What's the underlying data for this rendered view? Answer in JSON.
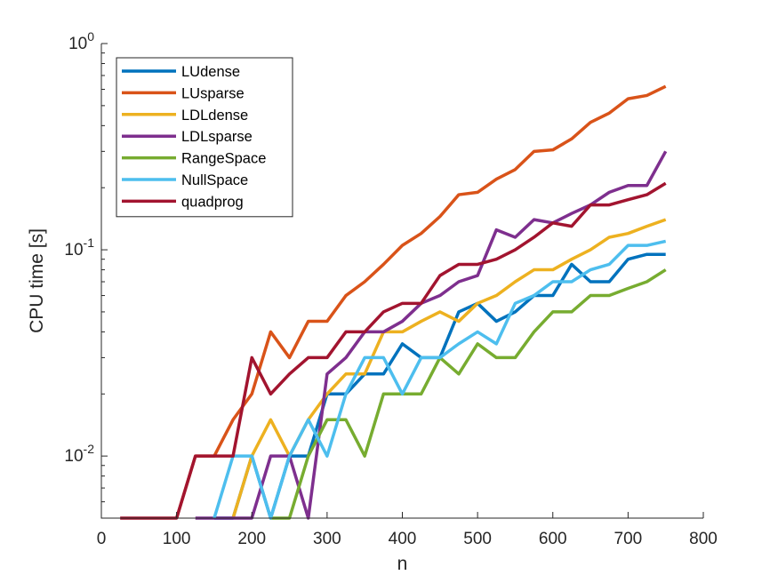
{
  "chart_data": {
    "type": "line",
    "xlabel": "n",
    "ylabel": "CPU time [s]",
    "xlim": [
      0,
      800
    ],
    "ylim": [
      0.005,
      1
    ],
    "yscale": "log",
    "xticks": [
      0,
      100,
      200,
      300,
      400,
      500,
      600,
      700,
      800
    ],
    "yticks": [
      {
        "value": 0.01,
        "base": "10",
        "exp": "-2"
      },
      {
        "value": 0.1,
        "base": "10",
        "exp": "-1"
      },
      {
        "value": 1,
        "base": "10",
        "exp": "0"
      }
    ],
    "grid": false,
    "legend_position": "top-left",
    "series": [
      {
        "name": "LUdense",
        "color": "#0072BD",
        "points": [
          [
            150,
            0.005
          ],
          [
            175,
            0.005
          ],
          [
            200,
            0.01
          ],
          [
            225,
            0.005
          ],
          [
            250,
            0.01
          ],
          [
            275,
            0.01
          ],
          [
            300,
            0.02
          ],
          [
            325,
            0.02
          ],
          [
            350,
            0.025
          ],
          [
            375,
            0.025
          ],
          [
            400,
            0.035
          ],
          [
            425,
            0.03
          ],
          [
            450,
            0.03
          ],
          [
            475,
            0.05
          ],
          [
            500,
            0.055
          ],
          [
            525,
            0.045
          ],
          [
            550,
            0.05
          ],
          [
            575,
            0.06
          ],
          [
            600,
            0.06
          ],
          [
            625,
            0.085
          ],
          [
            650,
            0.07
          ],
          [
            675,
            0.07
          ],
          [
            700,
            0.09
          ],
          [
            725,
            0.095
          ],
          [
            750,
            0.095
          ]
        ]
      },
      {
        "name": "LUsparse",
        "color": "#D95319",
        "points": [
          [
            100,
            0.005
          ],
          [
            125,
            0.01
          ],
          [
            150,
            0.01
          ],
          [
            175,
            0.015
          ],
          [
            200,
            0.02
          ],
          [
            225,
            0.04
          ],
          [
            250,
            0.03
          ],
          [
            275,
            0.045
          ],
          [
            300,
            0.045
          ],
          [
            325,
            0.06
          ],
          [
            350,
            0.07
          ],
          [
            375,
            0.085
          ],
          [
            400,
            0.105
          ],
          [
            425,
            0.12
          ],
          [
            450,
            0.145
          ],
          [
            475,
            0.185
          ],
          [
            500,
            0.19
          ],
          [
            525,
            0.22
          ],
          [
            550,
            0.245
          ],
          [
            575,
            0.3
          ],
          [
            600,
            0.305
          ],
          [
            625,
            0.345
          ],
          [
            650,
            0.415
          ],
          [
            675,
            0.46
          ],
          [
            700,
            0.54
          ],
          [
            725,
            0.56
          ],
          [
            750,
            0.62
          ]
        ]
      },
      {
        "name": "LDLdense",
        "color": "#EDB120",
        "points": [
          [
            175,
            0.005
          ],
          [
            200,
            0.01
          ],
          [
            225,
            0.015
          ],
          [
            250,
            0.01
          ],
          [
            275,
            0.015
          ],
          [
            300,
            0.02
          ],
          [
            325,
            0.025
          ],
          [
            350,
            0.025
          ],
          [
            375,
            0.04
          ],
          [
            400,
            0.04
          ],
          [
            425,
            0.045
          ],
          [
            450,
            0.05
          ],
          [
            475,
            0.045
          ],
          [
            500,
            0.055
          ],
          [
            525,
            0.06
          ],
          [
            550,
            0.07
          ],
          [
            575,
            0.08
          ],
          [
            600,
            0.08
          ],
          [
            625,
            0.09
          ],
          [
            650,
            0.1
          ],
          [
            675,
            0.115
          ],
          [
            700,
            0.12
          ],
          [
            725,
            0.13
          ],
          [
            750,
            0.14
          ]
        ]
      },
      {
        "name": "LDLsparse",
        "color": "#7E2F8E",
        "points": [
          [
            125,
            0.005
          ],
          [
            150,
            0.005
          ],
          [
            175,
            0.005
          ],
          [
            200,
            0.005
          ],
          [
            225,
            0.01
          ],
          [
            250,
            0.01
          ],
          [
            275,
            0.005
          ],
          [
            300,
            0.025
          ],
          [
            325,
            0.03
          ],
          [
            350,
            0.04
          ],
          [
            375,
            0.04
          ],
          [
            400,
            0.045
          ],
          [
            425,
            0.055
          ],
          [
            450,
            0.06
          ],
          [
            475,
            0.07
          ],
          [
            500,
            0.075
          ],
          [
            525,
            0.125
          ],
          [
            550,
            0.115
          ],
          [
            575,
            0.14
          ],
          [
            600,
            0.135
          ],
          [
            625,
            0.15
          ],
          [
            650,
            0.165
          ],
          [
            675,
            0.19
          ],
          [
            700,
            0.205
          ],
          [
            725,
            0.205
          ],
          [
            750,
            0.3
          ]
        ]
      },
      {
        "name": "RangeSpace",
        "color": "#77AC30",
        "points": [
          [
            225,
            0.005
          ],
          [
            250,
            0.005
          ],
          [
            275,
            0.01
          ],
          [
            300,
            0.015
          ],
          [
            325,
            0.015
          ],
          [
            350,
            0.01
          ],
          [
            375,
            0.02
          ],
          [
            400,
            0.02
          ],
          [
            425,
            0.02
          ],
          [
            450,
            0.03
          ],
          [
            475,
            0.025
          ],
          [
            500,
            0.035
          ],
          [
            525,
            0.03
          ],
          [
            550,
            0.03
          ],
          [
            575,
            0.04
          ],
          [
            600,
            0.05
          ],
          [
            625,
            0.05
          ],
          [
            650,
            0.06
          ],
          [
            675,
            0.06
          ],
          [
            700,
            0.065
          ],
          [
            725,
            0.07
          ],
          [
            750,
            0.08
          ]
        ]
      },
      {
        "name": "NullSpace",
        "color": "#4DBEEE",
        "points": [
          [
            150,
            0.005
          ],
          [
            175,
            0.01
          ],
          [
            200,
            0.01
          ],
          [
            225,
            0.005
          ],
          [
            250,
            0.01
          ],
          [
            275,
            0.015
          ],
          [
            300,
            0.01
          ],
          [
            325,
            0.02
          ],
          [
            350,
            0.03
          ],
          [
            375,
            0.03
          ],
          [
            400,
            0.02
          ],
          [
            425,
            0.03
          ],
          [
            450,
            0.03
          ],
          [
            475,
            0.035
          ],
          [
            500,
            0.04
          ],
          [
            525,
            0.035
          ],
          [
            550,
            0.055
          ],
          [
            575,
            0.06
          ],
          [
            600,
            0.07
          ],
          [
            625,
            0.07
          ],
          [
            650,
            0.08
          ],
          [
            675,
            0.085
          ],
          [
            700,
            0.105
          ],
          [
            725,
            0.105
          ],
          [
            750,
            0.11
          ]
        ]
      },
      {
        "name": "quadprog",
        "color": "#A2142F",
        "points": [
          [
            25,
            0.005
          ],
          [
            50,
            0.005
          ],
          [
            75,
            0.005
          ],
          [
            100,
            0.005
          ],
          [
            125,
            0.01
          ],
          [
            150,
            0.01
          ],
          [
            175,
            0.01
          ],
          [
            200,
            0.03
          ],
          [
            225,
            0.02
          ],
          [
            250,
            0.025
          ],
          [
            275,
            0.03
          ],
          [
            300,
            0.03
          ],
          [
            325,
            0.04
          ],
          [
            350,
            0.04
          ],
          [
            375,
            0.05
          ],
          [
            400,
            0.055
          ],
          [
            425,
            0.055
          ],
          [
            450,
            0.075
          ],
          [
            475,
            0.085
          ],
          [
            500,
            0.085
          ],
          [
            525,
            0.09
          ],
          [
            550,
            0.1
          ],
          [
            575,
            0.115
          ],
          [
            600,
            0.135
          ],
          [
            625,
            0.13
          ],
          [
            650,
            0.165
          ],
          [
            675,
            0.165
          ],
          [
            700,
            0.175
          ],
          [
            725,
            0.185
          ],
          [
            750,
            0.21
          ]
        ]
      }
    ]
  }
}
